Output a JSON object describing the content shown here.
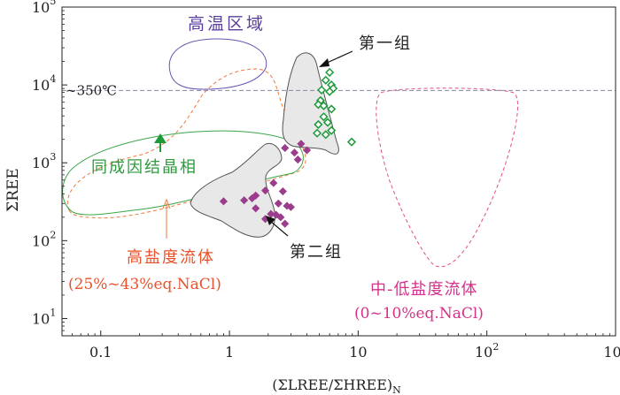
{
  "chart_data": {
    "type": "scatter",
    "scale": "log-log",
    "xlim": [
      0.05,
      1000
    ],
    "ylim": [
      6,
      100000
    ],
    "grid": false,
    "axes": {
      "x_label": "(ΣLREE/ΣHREE)",
      "x_label_subscript": "N",
      "y_label": "ΣREE",
      "x_ticks": [
        {
          "value": 0.1,
          "base": "0.1",
          "exp": ""
        },
        {
          "value": 1,
          "base": "1",
          "exp": ""
        },
        {
          "value": 10,
          "base": "10",
          "exp": ""
        },
        {
          "value": 100,
          "base": "10",
          "exp": "2"
        },
        {
          "value": 1000,
          "base": "10",
          "exp": "3"
        }
      ],
      "y_ticks": [
        {
          "value": 10,
          "base": "10",
          "exp": "1"
        },
        {
          "value": 100,
          "base": "10",
          "exp": "2"
        },
        {
          "value": 1000,
          "base": "10",
          "exp": "3"
        },
        {
          "value": 10000,
          "base": "10",
          "exp": "4"
        },
        {
          "value": 100000,
          "base": "10",
          "exp": "5"
        }
      ]
    },
    "reference_line": {
      "y": 8500,
      "label": "~350℃",
      "color": "#8888a0"
    },
    "series": [
      {
        "name": "第一组",
        "marker": "open-diamond",
        "color": "#1e9a3a",
        "points": [
          [
            6.0,
            14500
          ],
          [
            5.6,
            11500
          ],
          [
            6.2,
            10000
          ],
          [
            6.4,
            9000
          ],
          [
            6.0,
            8200
          ],
          [
            5.2,
            8600
          ],
          [
            5.1,
            6300
          ],
          [
            4.9,
            5600
          ],
          [
            5.4,
            5400
          ],
          [
            6.2,
            4900
          ],
          [
            5.4,
            3900
          ],
          [
            4.9,
            3100
          ],
          [
            5.8,
            3300
          ],
          [
            6.2,
            2600
          ],
          [
            4.8,
            2400
          ],
          [
            5.6,
            2300
          ],
          [
            8.9,
            1850
          ]
        ]
      },
      {
        "name": "第二组",
        "marker": "filled-diamond",
        "color": "#9b3d8c",
        "points": [
          [
            2.7,
            1550
          ],
          [
            3.2,
            1350
          ],
          [
            3.4,
            1100
          ],
          [
            4.0,
            1450
          ],
          [
            3.6,
            1750
          ],
          [
            2.2,
            550
          ],
          [
            2.6,
            430
          ],
          [
            1.9,
            440
          ],
          [
            1.6,
            380
          ],
          [
            1.5,
            350
          ],
          [
            1.3,
            330
          ],
          [
            2.4,
            300
          ],
          [
            2.8,
            280
          ],
          [
            3.0,
            270
          ],
          [
            1.6,
            260
          ],
          [
            0.9,
            320
          ],
          [
            2.1,
            220
          ],
          [
            2.3,
            215
          ],
          [
            2.5,
            200
          ],
          [
            1.9,
            190
          ],
          [
            2.7,
            165
          ]
        ]
      }
    ],
    "regions": [
      {
        "name": "高温区域",
        "style": "solid",
        "color": "#6a52b0"
      },
      {
        "name": "同成因结晶相",
        "style": "solid",
        "color": "#3aa64a"
      },
      {
        "name": "高盐度流体",
        "note": "(25%~43%eq.NaCl)",
        "style": "dashed",
        "color": "#f07a3a"
      },
      {
        "name": "中-低盐度流体",
        "note": "(0~10%eq.NaCl)",
        "style": "dashed",
        "color": "#e0508a"
      },
      {
        "name": "第一组",
        "style": "filled",
        "color": "#e8e8e8"
      },
      {
        "name": "第二组",
        "style": "filled",
        "color": "#e8e8e8"
      }
    ],
    "annotations": [
      {
        "text": "高温区域",
        "color": "#5a3e9e"
      },
      {
        "text": "第一组",
        "color": "#222222"
      },
      {
        "text": "同成因结晶相",
        "color": "#2e9a3e"
      },
      {
        "text": "第二组",
        "color": "#222222"
      },
      {
        "text": "高盐度流体",
        "color": "#e8522a"
      },
      {
        "text": "(25%~43%eq.NaCl)",
        "color": "#e8522a"
      },
      {
        "text": "中-低盐度流体",
        "color": "#d6308a"
      },
      {
        "text": "(0~10%eq.NaCl)",
        "color": "#d6308a"
      }
    ]
  }
}
